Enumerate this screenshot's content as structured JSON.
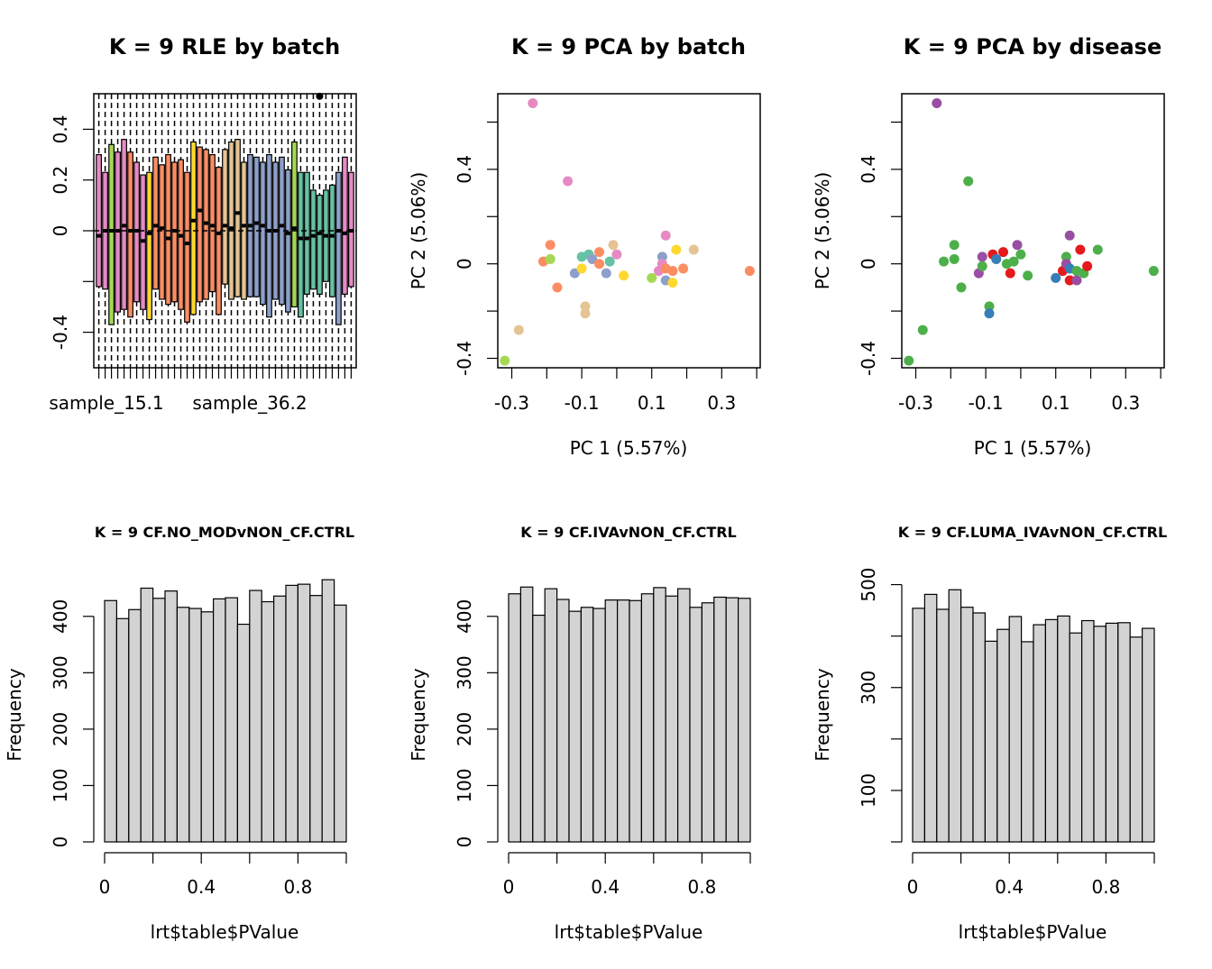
{
  "chart_data": [
    {
      "type": "boxplot",
      "title": "K = 9 RLE by batch",
      "xlabel": "",
      "ylabel": "",
      "x_tick_labels": [
        "sample_15.1",
        "sample_36.2"
      ],
      "yticks": [
        -0.4,
        0.0,
        0.2,
        0.4
      ],
      "ylim": [
        -0.54,
        0.54
      ],
      "reference_line": 0,
      "boxes": [
        {
          "low": -0.39,
          "q1": -0.22,
          "median": -0.02,
          "q3": 0.3,
          "high": 0.3,
          "color": "#E78AC3"
        },
        {
          "low": -0.23,
          "q1": -0.23,
          "median": 0.0,
          "q3": 0.23,
          "high": 0.23,
          "color": "#E78AC3"
        },
        {
          "low": -0.37,
          "q1": -0.37,
          "median": 0.0,
          "q3": 0.34,
          "high": 0.34,
          "color": "#A6D854"
        },
        {
          "low": -0.32,
          "q1": -0.32,
          "median": 0.0,
          "q3": 0.31,
          "high": 0.31,
          "color": "#E78AC3"
        },
        {
          "low": -0.31,
          "q1": -0.31,
          "median": 0.02,
          "q3": 0.36,
          "high": 0.36,
          "color": "#E78AC3"
        },
        {
          "low": -0.34,
          "q1": -0.34,
          "median": 0.0,
          "q3": 0.31,
          "high": 0.31,
          "color": "#FC8D62"
        },
        {
          "low": -0.28,
          "q1": -0.28,
          "median": 0.0,
          "q3": 0.27,
          "high": 0.27,
          "color": "#E78AC3"
        },
        {
          "low": -0.31,
          "q1": -0.31,
          "median": -0.04,
          "q3": 0.22,
          "high": 0.22,
          "color": "#E78AC3"
        },
        {
          "low": -0.35,
          "q1": -0.35,
          "median": -0.01,
          "q3": 0.23,
          "high": 0.23,
          "color": "#FFD92F"
        },
        {
          "low": -0.23,
          "q1": -0.23,
          "median": 0.02,
          "q3": 0.29,
          "high": 0.29,
          "color": "#FC8D62"
        },
        {
          "low": -0.27,
          "q1": -0.27,
          "median": 0.01,
          "q3": 0.26,
          "high": 0.26,
          "color": "#FC8D62"
        },
        {
          "low": -0.29,
          "q1": -0.29,
          "median": -0.03,
          "q3": 0.3,
          "high": 0.3,
          "color": "#FC8D62"
        },
        {
          "low": -0.28,
          "q1": -0.28,
          "median": 0.0,
          "q3": 0.27,
          "high": 0.27,
          "color": "#FC8D62"
        },
        {
          "low": -0.31,
          "q1": -0.31,
          "median": -0.02,
          "q3": 0.28,
          "high": 0.28,
          "color": "#FC8D62"
        },
        {
          "low": -0.36,
          "q1": -0.36,
          "median": -0.05,
          "q3": 0.23,
          "high": 0.23,
          "color": "#FC8D62"
        },
        {
          "low": -0.33,
          "q1": -0.33,
          "median": 0.04,
          "q3": 0.35,
          "high": 0.35,
          "color": "#FFD92F"
        },
        {
          "low": -0.28,
          "q1": -0.28,
          "median": 0.08,
          "q3": 0.33,
          "high": 0.33,
          "color": "#FC8D62"
        },
        {
          "low": -0.27,
          "q1": -0.27,
          "median": 0.03,
          "q3": 0.32,
          "high": 0.32,
          "color": "#FC8D62"
        },
        {
          "low": -0.24,
          "q1": -0.24,
          "median": 0.02,
          "q3": 0.3,
          "high": 0.3,
          "color": "#FC8D62"
        },
        {
          "low": -0.33,
          "q1": -0.33,
          "median": -0.01,
          "q3": 0.25,
          "high": 0.25,
          "color": "#FC8D62"
        },
        {
          "low": -0.21,
          "q1": -0.21,
          "median": 0.02,
          "q3": 0.32,
          "high": 0.32,
          "color": "#E5C494"
        },
        {
          "low": -0.27,
          "q1": -0.27,
          "median": 0.01,
          "q3": 0.35,
          "high": 0.35,
          "color": "#E5C494"
        },
        {
          "low": -0.26,
          "q1": -0.26,
          "median": 0.07,
          "q3": 0.36,
          "high": 0.36,
          "color": "#E5C494"
        },
        {
          "low": -0.27,
          "q1": -0.27,
          "median": 0.02,
          "q3": 0.27,
          "high": 0.27,
          "color": "#E5C494"
        },
        {
          "low": -0.26,
          "q1": -0.26,
          "median": 0.02,
          "q3": 0.3,
          "high": 0.3,
          "color": "#8DA0CB"
        },
        {
          "low": -0.26,
          "q1": -0.26,
          "median": 0.03,
          "q3": 0.29,
          "high": 0.29,
          "color": "#8DA0CB"
        },
        {
          "low": -0.29,
          "q1": -0.29,
          "median": 0.02,
          "q3": 0.27,
          "high": 0.27,
          "color": "#8DA0CB"
        },
        {
          "low": -0.34,
          "q1": -0.34,
          "median": 0.0,
          "q3": 0.3,
          "high": 0.3,
          "color": "#8DA0CB"
        },
        {
          "low": -0.27,
          "q1": -0.27,
          "median": 0.0,
          "q3": 0.27,
          "high": 0.27,
          "color": "#8DA0CB"
        },
        {
          "low": -0.29,
          "q1": -0.29,
          "median": 0.02,
          "q3": 0.29,
          "high": 0.29,
          "color": "#8DA0CB"
        },
        {
          "low": -0.32,
          "q1": -0.32,
          "median": -0.01,
          "q3": 0.24,
          "high": 0.24,
          "color": "#8DA0CB"
        },
        {
          "low": -0.3,
          "q1": -0.3,
          "median": 0.01,
          "q3": 0.35,
          "high": 0.35,
          "color": "#A6D854"
        },
        {
          "low": -0.34,
          "q1": -0.34,
          "median": -0.03,
          "q3": 0.23,
          "high": 0.23,
          "color": "#66C2A5"
        },
        {
          "low": -0.25,
          "q1": -0.25,
          "median": -0.03,
          "q3": 0.23,
          "high": 0.23,
          "color": "#66C2A5"
        },
        {
          "low": -0.23,
          "q1": -0.23,
          "median": -0.02,
          "q3": 0.16,
          "high": 0.16,
          "color": "#66C2A5"
        },
        {
          "low": -0.25,
          "q1": -0.25,
          "median": -0.01,
          "q3": 0.14,
          "high": 0.14,
          "color": "#66C2A5"
        },
        {
          "low": -0.2,
          "q1": -0.2,
          "median": -0.02,
          "q3": 0.16,
          "high": 0.16,
          "color": "#66C2A5"
        },
        {
          "low": -0.26,
          "q1": -0.26,
          "median": -0.02,
          "q3": 0.18,
          "high": 0.18,
          "color": "#66C2A5"
        },
        {
          "low": -0.37,
          "q1": -0.37,
          "median": 0.0,
          "q3": 0.23,
          "high": 0.23,
          "color": "#8DA0CB"
        },
        {
          "low": -0.25,
          "q1": -0.25,
          "median": -0.01,
          "q3": 0.29,
          "high": 0.29,
          "color": "#E78AC3"
        },
        {
          "low": -0.22,
          "q1": -0.22,
          "median": 0.0,
          "q3": 0.23,
          "high": 0.23,
          "color": "#E78AC3"
        }
      ],
      "outliers": [
        {
          "box": 35,
          "value": 0.53
        }
      ]
    },
    {
      "type": "scatter",
      "title": "K = 9 PCA by batch",
      "xlabel": "PC 1 (5.57%)",
      "ylabel": "PC 2 (5.06%)",
      "xticks": [
        -0.3,
        -0.1,
        0.1,
        0.3
      ],
      "yticks": [
        -0.4,
        0.0,
        0.4
      ],
      "xlim": [
        -0.34,
        0.41
      ],
      "ylim": [
        -0.44,
        0.72
      ],
      "points": [
        {
          "x": -0.24,
          "y": 0.68,
          "color": "#E78AC3"
        },
        {
          "x": -0.14,
          "y": 0.35,
          "color": "#E78AC3"
        },
        {
          "x": -0.19,
          "y": 0.08,
          "color": "#FC8D62"
        },
        {
          "x": -0.21,
          "y": 0.01,
          "color": "#FC8D62"
        },
        {
          "x": -0.19,
          "y": 0.02,
          "color": "#A6D854"
        },
        {
          "x": -0.17,
          "y": -0.1,
          "color": "#FC8D62"
        },
        {
          "x": -0.28,
          "y": -0.28,
          "color": "#E5C494"
        },
        {
          "x": -0.32,
          "y": -0.41,
          "color": "#A6D854"
        },
        {
          "x": -0.12,
          "y": -0.04,
          "color": "#8DA0CB"
        },
        {
          "x": -0.1,
          "y": 0.03,
          "color": "#66C2A5"
        },
        {
          "x": -0.1,
          "y": -0.02,
          "color": "#FFD92F"
        },
        {
          "x": -0.08,
          "y": 0.04,
          "color": "#66C2A5"
        },
        {
          "x": -0.07,
          "y": 0.02,
          "color": "#8DA0CB"
        },
        {
          "x": -0.05,
          "y": 0.05,
          "color": "#FC8D62"
        },
        {
          "x": -0.05,
          "y": 0.0,
          "color": "#FC8D62"
        },
        {
          "x": -0.03,
          "y": -0.04,
          "color": "#8DA0CB"
        },
        {
          "x": -0.02,
          "y": 0.01,
          "color": "#66C2A5"
        },
        {
          "x": -0.01,
          "y": 0.08,
          "color": "#E5C494"
        },
        {
          "x": 0.0,
          "y": 0.04,
          "color": "#E78AC3"
        },
        {
          "x": 0.02,
          "y": -0.05,
          "color": "#FFD92F"
        },
        {
          "x": -0.09,
          "y": -0.18,
          "color": "#E5C494"
        },
        {
          "x": -0.09,
          "y": -0.21,
          "color": "#E5C494"
        },
        {
          "x": 0.1,
          "y": -0.06,
          "color": "#A6D854"
        },
        {
          "x": 0.12,
          "y": -0.03,
          "color": "#E78AC3"
        },
        {
          "x": 0.13,
          "y": 0.03,
          "color": "#8DA0CB"
        },
        {
          "x": 0.13,
          "y": 0.0,
          "color": "#E78AC3"
        },
        {
          "x": 0.14,
          "y": -0.07,
          "color": "#8DA0CB"
        },
        {
          "x": 0.14,
          "y": -0.02,
          "color": "#FC8D62"
        },
        {
          "x": 0.14,
          "y": 0.12,
          "color": "#E78AC3"
        },
        {
          "x": 0.16,
          "y": -0.03,
          "color": "#FC8D62"
        },
        {
          "x": 0.16,
          "y": -0.08,
          "color": "#FFD92F"
        },
        {
          "x": 0.17,
          "y": 0.06,
          "color": "#FFD92F"
        },
        {
          "x": 0.19,
          "y": -0.02,
          "color": "#FC8D62"
        },
        {
          "x": 0.22,
          "y": 0.06,
          "color": "#E5C494"
        },
        {
          "x": 0.38,
          "y": -0.03,
          "color": "#FC8D62"
        }
      ]
    },
    {
      "type": "scatter",
      "title": "K = 9 PCA by disease",
      "xlabel": "PC 1 (5.57%)",
      "ylabel": "PC 2 (5.06%)",
      "xticks": [
        -0.3,
        -0.1,
        0.1,
        0.3
      ],
      "yticks": [
        -0.4,
        0.0,
        0.4
      ],
      "xlim": [
        -0.34,
        0.41
      ],
      "ylim": [
        -0.44,
        0.72
      ],
      "points": [
        {
          "x": -0.24,
          "y": 0.68,
          "color": "#984EA3"
        },
        {
          "x": -0.15,
          "y": 0.35,
          "color": "#4DAF4A"
        },
        {
          "x": -0.19,
          "y": 0.08,
          "color": "#4DAF4A"
        },
        {
          "x": -0.22,
          "y": 0.01,
          "color": "#4DAF4A"
        },
        {
          "x": -0.19,
          "y": 0.02,
          "color": "#4DAF4A"
        },
        {
          "x": -0.17,
          "y": -0.1,
          "color": "#4DAF4A"
        },
        {
          "x": -0.28,
          "y": -0.28,
          "color": "#4DAF4A"
        },
        {
          "x": -0.32,
          "y": -0.41,
          "color": "#4DAF4A"
        },
        {
          "x": -0.12,
          "y": -0.04,
          "color": "#984EA3"
        },
        {
          "x": -0.11,
          "y": 0.03,
          "color": "#984EA3"
        },
        {
          "x": -0.11,
          "y": -0.01,
          "color": "#4DAF4A"
        },
        {
          "x": -0.08,
          "y": 0.04,
          "color": "#E41A1C"
        },
        {
          "x": -0.07,
          "y": 0.02,
          "color": "#377EB8"
        },
        {
          "x": -0.05,
          "y": 0.05,
          "color": "#E41A1C"
        },
        {
          "x": -0.04,
          "y": 0.0,
          "color": "#4DAF4A"
        },
        {
          "x": -0.03,
          "y": -0.04,
          "color": "#E41A1C"
        },
        {
          "x": -0.02,
          "y": 0.01,
          "color": "#4DAF4A"
        },
        {
          "x": -0.01,
          "y": 0.08,
          "color": "#984EA3"
        },
        {
          "x": 0.0,
          "y": 0.04,
          "color": "#4DAF4A"
        },
        {
          "x": 0.02,
          "y": -0.05,
          "color": "#4DAF4A"
        },
        {
          "x": -0.09,
          "y": -0.18,
          "color": "#4DAF4A"
        },
        {
          "x": -0.09,
          "y": -0.21,
          "color": "#377EB8"
        },
        {
          "x": 0.1,
          "y": -0.06,
          "color": "#377EB8"
        },
        {
          "x": 0.12,
          "y": -0.03,
          "color": "#E41A1C"
        },
        {
          "x": 0.13,
          "y": 0.03,
          "color": "#4DAF4A"
        },
        {
          "x": 0.13,
          "y": 0.0,
          "color": "#984EA3"
        },
        {
          "x": 0.14,
          "y": -0.07,
          "color": "#E41A1C"
        },
        {
          "x": 0.14,
          "y": -0.02,
          "color": "#377EB8"
        },
        {
          "x": 0.14,
          "y": 0.12,
          "color": "#984EA3"
        },
        {
          "x": 0.16,
          "y": -0.03,
          "color": "#4DAF4A"
        },
        {
          "x": 0.16,
          "y": -0.07,
          "color": "#984EA3"
        },
        {
          "x": 0.17,
          "y": 0.06,
          "color": "#E41A1C"
        },
        {
          "x": 0.18,
          "y": -0.04,
          "color": "#4DAF4A"
        },
        {
          "x": 0.19,
          "y": -0.01,
          "color": "#E41A1C"
        },
        {
          "x": 0.22,
          "y": 0.06,
          "color": "#4DAF4A"
        },
        {
          "x": 0.38,
          "y": -0.03,
          "color": "#4DAF4A"
        }
      ]
    },
    {
      "type": "bar",
      "title": "K = 9 CF.NO_MODvNON_CF.CTRL",
      "xlabel": "lrt$table$PValue",
      "ylabel": "Frequency",
      "xticks": [
        0.0,
        0.4,
        0.8
      ],
      "yticks": [
        0,
        100,
        200,
        300,
        400
      ],
      "xlim": [
        0,
        1
      ],
      "ylim": [
        0,
        470
      ],
      "bin_width": 0.05,
      "values": [
        428,
        396,
        412,
        450,
        432,
        445,
        416,
        414,
        408,
        431,
        433,
        386,
        446,
        426,
        436,
        455,
        457,
        437,
        465,
        420
      ]
    },
    {
      "type": "bar",
      "title": "K = 9 CF.IVAvNON_CF.CTRL",
      "xlabel": "lrt$table$PValue",
      "ylabel": "Frequency",
      "xticks": [
        0.0,
        0.4,
        0.8
      ],
      "yticks": [
        0,
        100,
        200,
        300,
        400
      ],
      "xlim": [
        0,
        1
      ],
      "ylim": [
        0,
        470
      ],
      "bin_width": 0.05,
      "values": [
        440,
        452,
        402,
        449,
        430,
        409,
        416,
        414,
        429,
        429,
        428,
        440,
        451,
        436,
        449,
        416,
        424,
        434,
        433,
        432
      ]
    },
    {
      "type": "bar",
      "title": "K = 9 CF.LUMA_IVAvNON_CF.CTRL",
      "xlabel": "lrt$table$PValue",
      "ylabel": "Frequency",
      "xticks": [
        0.0,
        0.4,
        0.8
      ],
      "yticks": [
        100,
        300,
        500
      ],
      "yminor": [
        0,
        200,
        400
      ],
      "xlim": [
        0,
        1
      ],
      "ylim": [
        0,
        515
      ],
      "bin_width": 0.05,
      "values": [
        454,
        481,
        452,
        490,
        456,
        445,
        390,
        413,
        438,
        389,
        422,
        432,
        439,
        406,
        430,
        419,
        425,
        426,
        398,
        415
      ]
    }
  ]
}
